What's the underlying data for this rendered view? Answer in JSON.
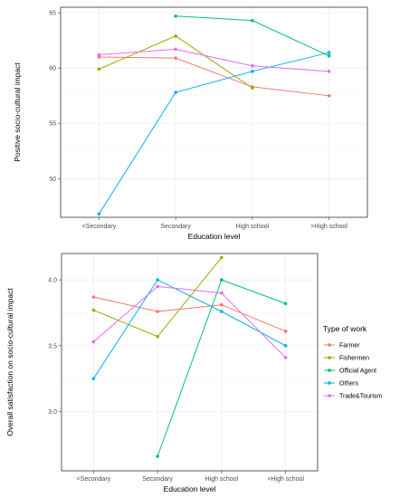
{
  "legend": {
    "title": "Type of work",
    "placement": "right"
  },
  "colors": {
    "Farmer": "#F8766D",
    "Fishermen": "#A3A500",
    "Official Agent": "#00BF7D",
    "Others": "#00B0F6",
    "Trade&Tourism": "#E76BF3"
  },
  "chart_data": [
    {
      "type": "line",
      "xlabel": "Education level",
      "ylabel": "Positive socio-cultural impact",
      "categories": [
        "<Secondary",
        "Secondary",
        "High school",
        ">High school"
      ],
      "ylim": [
        46.5,
        65.5
      ],
      "yticks": [
        50,
        55,
        60,
        65
      ],
      "grid": true,
      "series": [
        {
          "name": "Farmer",
          "values": [
            61.0,
            60.9,
            58.3,
            57.5
          ]
        },
        {
          "name": "Fishermen",
          "values": [
            59.9,
            62.9,
            58.2,
            null
          ]
        },
        {
          "name": "Official Agent",
          "values": [
            null,
            64.7,
            64.3,
            61.1
          ]
        },
        {
          "name": "Others",
          "values": [
            46.8,
            57.8,
            59.7,
            61.4
          ]
        },
        {
          "name": "Trade&Tourism",
          "values": [
            61.2,
            61.7,
            60.2,
            59.7
          ]
        }
      ]
    },
    {
      "type": "line",
      "xlabel": "Education level",
      "ylabel": "Overall satisfaction on socio-cultural impact",
      "categories": [
        "<Secondary",
        "Secondary",
        "High school",
        ">High school"
      ],
      "ylim": [
        2.55,
        4.2
      ],
      "yticks": [
        3.0,
        3.5,
        4.0
      ],
      "ytick_labels": [
        "3.0",
        "3.5",
        "4.0"
      ],
      "grid": true,
      "series": [
        {
          "name": "Farmer",
          "values": [
            3.87,
            3.76,
            3.81,
            3.61
          ]
        },
        {
          "name": "Fishermen",
          "values": [
            3.77,
            3.57,
            4.17,
            null
          ]
        },
        {
          "name": "Official Agent",
          "values": [
            null,
            2.66,
            4.0,
            3.82
          ]
        },
        {
          "name": "Others",
          "values": [
            3.25,
            4.0,
            3.76,
            3.5
          ]
        },
        {
          "name": "Trade&Tourism",
          "values": [
            3.53,
            3.95,
            3.9,
            3.41
          ]
        }
      ]
    }
  ]
}
